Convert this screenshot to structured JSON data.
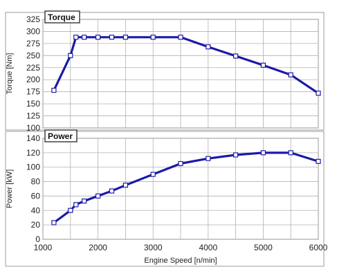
{
  "chart_data": [
    {
      "type": "line",
      "title": "Torque",
      "xlabel": "",
      "ylabel": "Torque [Nm]",
      "xlim": [
        1000,
        6000
      ],
      "ylim": [
        100,
        325
      ],
      "x_ticks": [
        1000,
        1500,
        2000,
        2500,
        3000,
        3500,
        4000,
        4500,
        5000,
        5500,
        6000
      ],
      "y_ticks": [
        100,
        125,
        150,
        175,
        200,
        225,
        250,
        275,
        300,
        325
      ],
      "grid": true,
      "series": [
        {
          "color": "#1a1aa8",
          "marker": "square",
          "x": [
            1200,
            1500,
            1600,
            1750,
            2000,
            2250,
            2500,
            3000,
            3500,
            4000,
            4500,
            5000,
            5500,
            6000
          ],
          "y": [
            178,
            250,
            288,
            288,
            288,
            288,
            288,
            288,
            288,
            268,
            249,
            230,
            210,
            172
          ]
        }
      ]
    },
    {
      "type": "line",
      "title": "Power",
      "xlabel": "Engine Speed [n/min]",
      "ylabel": "Power [kW]",
      "xlim": [
        1000,
        6000
      ],
      "ylim": [
        0,
        140
      ],
      "x_ticks": [
        1000,
        1500,
        2000,
        2500,
        3000,
        3500,
        4000,
        4500,
        5000,
        5500,
        6000
      ],
      "x_tick_labels": [
        "1000",
        "2000",
        "3000",
        "4000",
        "5000",
        "6000"
      ],
      "y_ticks": [
        0,
        20,
        40,
        60,
        80,
        100,
        120,
        140
      ],
      "grid": true,
      "series": [
        {
          "color": "#1a1aa8",
          "marker": "square",
          "x": [
            1200,
            1500,
            1600,
            1750,
            2000,
            2250,
            2500,
            3000,
            3500,
            4000,
            4500,
            5000,
            5500,
            6000
          ],
          "y": [
            23,
            40,
            48,
            53,
            60,
            67,
            75,
            90,
            105,
            112,
            117,
            120,
            120,
            108
          ]
        }
      ]
    }
  ]
}
